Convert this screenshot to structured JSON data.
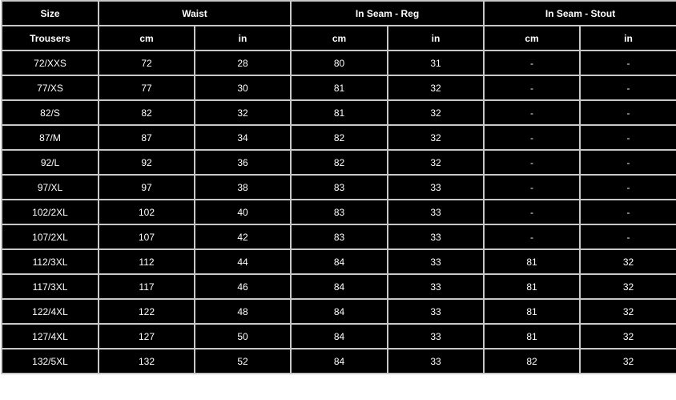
{
  "header": {
    "size": "Size",
    "groups": [
      "Waist",
      "In Seam - Reg",
      "In Seam - Stout"
    ],
    "sub": [
      "Trousers",
      "cm",
      "in",
      "cm",
      "in",
      "cm",
      "in"
    ]
  },
  "rows": [
    [
      "72/XXS",
      "72",
      "28",
      "80",
      "31",
      "-",
      "-"
    ],
    [
      "77/XS",
      "77",
      "30",
      "81",
      "32",
      "-",
      "-"
    ],
    [
      "82/S",
      "82",
      "32",
      "81",
      "32",
      "-",
      "-"
    ],
    [
      "87/M",
      "87",
      "34",
      "82",
      "32",
      "-",
      "-"
    ],
    [
      "92/L",
      "92",
      "36",
      "82",
      "32",
      "-",
      "-"
    ],
    [
      "97/XL",
      "97",
      "38",
      "83",
      "33",
      "-",
      "-"
    ],
    [
      "102/2XL",
      "102",
      "40",
      "83",
      "33",
      "-",
      "-"
    ],
    [
      "107/2XL",
      "107",
      "42",
      "83",
      "33",
      "-",
      "-"
    ],
    [
      "112/3XL",
      "112",
      "44",
      "84",
      "33",
      "81",
      "32"
    ],
    [
      "117/3XL",
      "117",
      "46",
      "84",
      "33",
      "81",
      "32"
    ],
    [
      "122/4XL",
      "122",
      "48",
      "84",
      "33",
      "81",
      "32"
    ],
    [
      "127/4XL",
      "127",
      "50",
      "84",
      "33",
      "81",
      "32"
    ],
    [
      "132/5XL",
      "132",
      "52",
      "84",
      "33",
      "82",
      "32"
    ]
  ]
}
